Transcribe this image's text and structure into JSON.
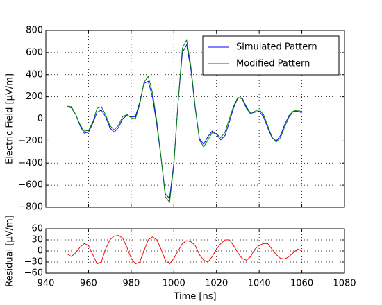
{
  "chart_data": [
    {
      "type": "line",
      "ylabel": "Electric Field [μV/m]",
      "x": [
        950,
        952,
        954,
        956,
        958,
        960,
        962,
        964,
        966,
        968,
        970,
        972,
        974,
        976,
        978,
        980,
        982,
        984,
        986,
        988,
        990,
        992,
        994,
        996,
        998,
        1000,
        1002,
        1004,
        1006,
        1008,
        1010,
        1012,
        1014,
        1016,
        1018,
        1020,
        1022,
        1024,
        1026,
        1028,
        1030,
        1032,
        1034,
        1036,
        1038,
        1040,
        1042,
        1044,
        1046,
        1048,
        1050,
        1052,
        1054,
        1056,
        1058,
        1060
      ],
      "series": [
        {
          "name": "Simulated Pattern",
          "color": "#0000ff",
          "values": [
            110,
            100,
            40,
            -60,
            -130,
            -120,
            -40,
            60,
            80,
            20,
            -80,
            -120,
            -80,
            0,
            30,
            20,
            20,
            150,
            320,
            340,
            200,
            -50,
            -350,
            -680,
            -720,
            -400,
            150,
            600,
            670,
            450,
            100,
            -180,
            -230,
            -160,
            -110,
            -140,
            -190,
            -150,
            -30,
            100,
            190,
            190,
            110,
            50,
            60,
            70,
            20,
            -80,
            -170,
            -200,
            -150,
            -50,
            30,
            70,
            70,
            55
          ]
        },
        {
          "name": "Modified Pattern",
          "color": "#008000",
          "values": [
            115,
            110,
            40,
            -50,
            -110,
            -105,
            -30,
            95,
            110,
            40,
            -60,
            -100,
            -60,
            20,
            40,
            10,
            0,
            130,
            330,
            385,
            238,
            -20,
            -345,
            -705,
            -755,
            -420,
            150,
            640,
            715,
            475,
            115,
            -190,
            -255,
            -190,
            -125,
            -135,
            -170,
            -120,
            0,
            115,
            195,
            180,
            95,
            45,
            70,
            85,
            40,
            -60,
            -165,
            -210,
            -170,
            -72,
            15,
            70,
            80,
            65
          ]
        }
      ],
      "xlim": [
        940,
        1080
      ],
      "ylim": [
        -800,
        800
      ],
      "yticks": [
        {
          "value": -800,
          "label": "−800"
        },
        {
          "value": -600,
          "label": "−600"
        },
        {
          "value": -400,
          "label": "−400"
        },
        {
          "value": -200,
          "label": "−200"
        },
        0,
        200,
        400,
        600,
        800
      ],
      "grid": true,
      "legend": "upper right"
    },
    {
      "type": "line",
      "xlabel": "Time [ns]",
      "ylabel": "Residual [μV/m]",
      "x": [
        950,
        952,
        954,
        956,
        958,
        960,
        962,
        964,
        966,
        968,
        970,
        972,
        974,
        976,
        978,
        980,
        982,
        984,
        986,
        988,
        990,
        992,
        994,
        996,
        998,
        1000,
        1002,
        1004,
        1006,
        1008,
        1010,
        1012,
        1014,
        1016,
        1018,
        1020,
        1022,
        1024,
        1026,
        1028,
        1030,
        1032,
        1034,
        1036,
        1038,
        1040,
        1042,
        1044,
        1046,
        1048,
        1050,
        1052,
        1054,
        1056,
        1058,
        1060
      ],
      "series": [
        {
          "color": "#ff0000",
          "values": [
            -8,
            -15,
            -5,
            10,
            20,
            15,
            -10,
            -35,
            -30,
            5,
            30,
            40,
            42,
            35,
            10,
            -20,
            -35,
            -30,
            0,
            30,
            38,
            30,
            5,
            -25,
            -35,
            -20,
            0,
            20,
            28,
            25,
            15,
            -10,
            -25,
            -30,
            -15,
            5,
            20,
            30,
            30,
            15,
            -5,
            -20,
            -25,
            -15,
            5,
            15,
            20,
            20,
            5,
            -10,
            -20,
            -22,
            -15,
            -5,
            5,
            0
          ]
        }
      ],
      "xlim": [
        940,
        1080
      ],
      "xticks": [
        940,
        960,
        980,
        1000,
        1020,
        1040,
        1060,
        1080
      ],
      "ylim": [
        -60,
        60
      ],
      "yticks": [
        {
          "value": -60,
          "label": "−60"
        },
        {
          "value": -30,
          "label": "−30"
        },
        0,
        30,
        60
      ],
      "grid": true
    }
  ]
}
